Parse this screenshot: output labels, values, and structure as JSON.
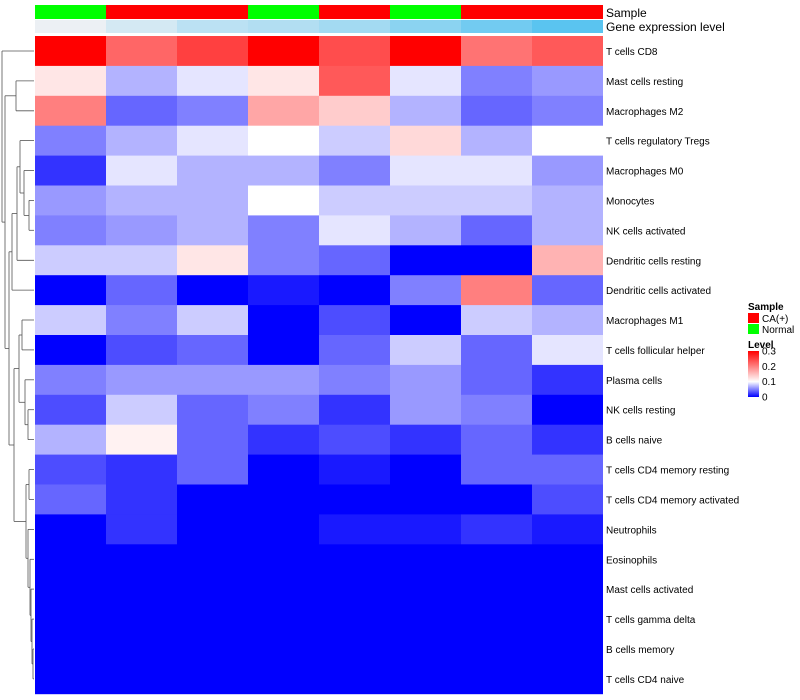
{
  "chart_data": {
    "type": "heatmap",
    "annotation_rows": [
      {
        "label": "Sample",
        "type": "categorical",
        "values": [
          "Normal",
          "CA(+)",
          "CA(+)",
          "Normal",
          "CA(+)",
          "Normal",
          "CA(+)",
          "CA(+)"
        ]
      },
      {
        "label": "Gene expression level",
        "type": "numeric",
        "values": [
          0.0,
          0.05,
          0.1,
          0.12,
          0.15,
          0.2,
          0.25,
          0.3
        ]
      }
    ],
    "rows": [
      "T cells CD8",
      "Mast cells resting",
      "Macrophages M2",
      "T cells regulatory  Tregs",
      "Macrophages M0",
      "Monocytes",
      "NK cells activated",
      "Dendritic cells resting",
      "Dendritic cells activated",
      "Macrophages M1",
      "T cells follicular helper",
      "Plasma cells",
      "NK cells resting",
      "B cells naive",
      "T cells CD4 memory resting",
      "T cells CD4 memory activated",
      "Neutrophils",
      "Eosinophils",
      "Mast cells activated",
      "T cells gamma delta",
      "B cells memory",
      "T cells CD4 naive"
    ],
    "values": [
      [
        0.3,
        0.22,
        0.25,
        0.3,
        0.24,
        0.3,
        0.21,
        0.23
      ],
      [
        0.12,
        0.07,
        0.09,
        0.12,
        0.23,
        0.09,
        0.05,
        0.06
      ],
      [
        0.2,
        0.04,
        0.05,
        0.17,
        0.14,
        0.07,
        0.04,
        0.05
      ],
      [
        0.05,
        0.07,
        0.09,
        0.1,
        0.08,
        0.13,
        0.07,
        0.1
      ],
      [
        0.02,
        0.09,
        0.07,
        0.07,
        0.05,
        0.09,
        0.09,
        0.06
      ],
      [
        0.06,
        0.07,
        0.07,
        0.1,
        0.08,
        0.08,
        0.08,
        0.07
      ],
      [
        0.05,
        0.06,
        0.07,
        0.05,
        0.09,
        0.07,
        0.04,
        0.07
      ],
      [
        0.08,
        0.08,
        0.12,
        0.05,
        0.04,
        0.0,
        0.0,
        0.16
      ],
      [
        0.0,
        0.04,
        0.0,
        0.01,
        0.0,
        0.05,
        0.2,
        0.04
      ],
      [
        0.08,
        0.05,
        0.08,
        0.0,
        0.03,
        0.0,
        0.08,
        0.07
      ],
      [
        0.0,
        0.03,
        0.04,
        0.0,
        0.04,
        0.08,
        0.04,
        0.09
      ],
      [
        0.05,
        0.06,
        0.06,
        0.06,
        0.05,
        0.06,
        0.04,
        0.02
      ],
      [
        0.03,
        0.08,
        0.04,
        0.05,
        0.02,
        0.06,
        0.05,
        0.0
      ],
      [
        0.07,
        0.11,
        0.04,
        0.02,
        0.03,
        0.02,
        0.04,
        0.02
      ],
      [
        0.03,
        0.02,
        0.04,
        0.0,
        0.01,
        0.0,
        0.04,
        0.04
      ],
      [
        0.04,
        0.02,
        0.0,
        0.0,
        0.0,
        0.0,
        0.0,
        0.03
      ],
      [
        0.0,
        0.02,
        0.0,
        0.0,
        0.01,
        0.01,
        0.02,
        0.01
      ],
      [
        0.0,
        0.0,
        0.0,
        0.0,
        0.0,
        0.0,
        0.0,
        0.0
      ],
      [
        0.0,
        0.0,
        0.0,
        0.0,
        0.0,
        0.0,
        0.0,
        0.0
      ],
      [
        0.0,
        0.0,
        0.0,
        0.0,
        0.0,
        0.0,
        0.0,
        0.0
      ],
      [
        0.0,
        0.0,
        0.0,
        0.0,
        0.0,
        0.0,
        0.0,
        0.0
      ],
      [
        0.0,
        0.0,
        0.0,
        0.0,
        0.0,
        0.0,
        0.0,
        0.0
      ]
    ],
    "color_scale": {
      "min": 0,
      "mid": 0.1,
      "max": 0.3,
      "low": "#0000ff",
      "mid_color": "#ffffff",
      "high": "#ff0000"
    },
    "legends": {
      "sample": {
        "title": "Sample",
        "items": [
          {
            "label": "CA(+)",
            "color": "#ff0000"
          },
          {
            "label": "Normal",
            "color": "#00ff00"
          }
        ]
      },
      "level": {
        "title": "Level",
        "ticks": [
          "0.3",
          "0.2",
          "0.1",
          "0"
        ],
        "tick_values": [
          0.3,
          0.2,
          0.1,
          0
        ]
      }
    },
    "legend_position": "right"
  }
}
